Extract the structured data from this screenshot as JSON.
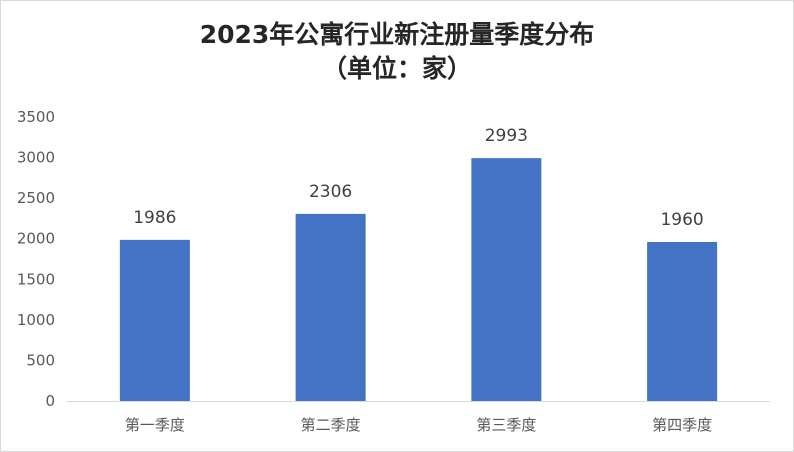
{
  "chart_data": {
    "type": "bar",
    "title_line1": "2023年公寓行业新注册量季度分布",
    "title_line2": "（单位：家）",
    "categories": [
      "第一季度",
      "第二季度",
      "第三季度",
      "第四季度"
    ],
    "values": [
      1986,
      2306,
      2993,
      1960
    ],
    "data_labels": [
      "1986",
      "2306",
      "2993",
      "1960"
    ],
    "ylim": [
      0,
      3500
    ],
    "yticks": [
      0,
      500,
      1000,
      1500,
      2000,
      2500,
      3000,
      3500
    ],
    "grid": false,
    "legend": "none",
    "bar_color": "#4472C4"
  }
}
